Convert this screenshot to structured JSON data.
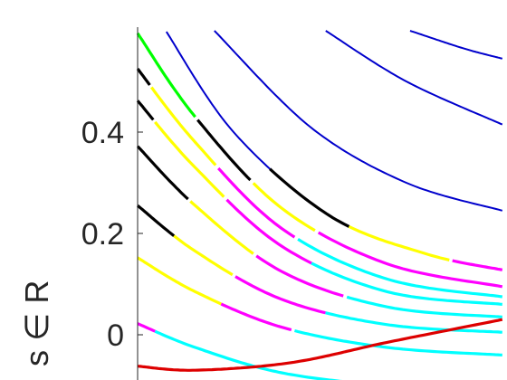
{
  "chart_data": {
    "type": "line",
    "title": "",
    "xlabel": "",
    "ylabel": "s ∈ R",
    "ylim": [
      -0.066,
      0.59
    ],
    "yticks": [
      0,
      0.2,
      0.4
    ],
    "ytick_labels": [
      "0",
      "0.2",
      "0.4"
    ],
    "grid": false,
    "legend": "none",
    "colors": {
      "green": "#00ff00",
      "black": "#000000",
      "yellow": "#ffff00",
      "magenta": "#ff00ff",
      "cyan": "#00ffff",
      "blue": "#0000cc",
      "red": "#dd0000",
      "axis": "#262626"
    },
    "curves": [
      {
        "points": [
          [
            0.0,
            0.595
          ],
          [
            0.3,
            0.43
          ],
          [
            0.75,
            0.25
          ],
          [
            1.3,
            0.14
          ],
          [
            1.9,
            0.095
          ]
        ],
        "segments": [
          [
            "green",
            0,
            0.22
          ],
          [
            "black",
            0.22,
            0.4
          ],
          [
            "yellow",
            0.4,
            0.58
          ],
          [
            "magenta",
            0.58,
            1
          ]
        ]
      },
      {
        "points": [
          [
            0.0,
            0.525
          ],
          [
            0.3,
            0.38
          ],
          [
            0.75,
            0.21
          ],
          [
            1.3,
            0.11
          ],
          [
            1.9,
            0.075
          ]
        ],
        "segments": [
          [
            "black",
            0,
            0.05
          ],
          [
            "yellow",
            0.05,
            0.28
          ],
          [
            "magenta",
            0.28,
            0.52
          ],
          [
            "cyan",
            0.52,
            1
          ]
        ]
      },
      {
        "points": [
          [
            0.0,
            0.462
          ],
          [
            0.3,
            0.33
          ],
          [
            0.75,
            0.175
          ],
          [
            1.3,
            0.085
          ],
          [
            1.9,
            0.06
          ]
        ],
        "segments": [
          [
            "black",
            0,
            0.06
          ],
          [
            "yellow",
            0.06,
            0.3
          ],
          [
            "magenta",
            0.3,
            0.55
          ],
          [
            "cyan",
            0.55,
            1
          ]
        ]
      },
      {
        "points": [
          [
            0.0,
            0.372
          ],
          [
            0.3,
            0.255
          ],
          [
            0.75,
            0.125
          ],
          [
            1.3,
            0.055
          ],
          [
            1.9,
            0.035
          ]
        ],
        "segments": [
          [
            "black",
            0,
            0.18
          ],
          [
            "yellow",
            0.18,
            0.38
          ],
          [
            "magenta",
            0.38,
            0.62
          ],
          [
            "cyan",
            0.62,
            1
          ]
        ]
      },
      {
        "points": [
          [
            0.0,
            0.255
          ],
          [
            0.3,
            0.165
          ],
          [
            0.75,
            0.07
          ],
          [
            1.3,
            0.02
          ],
          [
            1.9,
            0.005
          ]
        ],
        "segments": [
          [
            "black",
            0,
            0.12
          ],
          [
            "yellow",
            0.12,
            0.3
          ],
          [
            "magenta",
            0.3,
            0.55
          ],
          [
            "cyan",
            0.55,
            1
          ]
        ]
      },
      {
        "points": [
          [
            0.0,
            0.152
          ],
          [
            0.3,
            0.085
          ],
          [
            0.75,
            0.015
          ],
          [
            1.3,
            -0.025
          ],
          [
            1.9,
            -0.04
          ]
        ],
        "segments": [
          [
            "yellow",
            0,
            0.25
          ],
          [
            "magenta",
            0.25,
            0.45
          ],
          [
            "cyan",
            0.45,
            1
          ]
        ]
      },
      {
        "points": [
          [
            0.0,
            0.022
          ],
          [
            0.3,
            -0.025
          ],
          [
            0.75,
            -0.075
          ],
          [
            1.3,
            -0.1
          ],
          [
            1.9,
            -0.11
          ]
        ],
        "segments": [
          [
            "magenta",
            0,
            0.05
          ],
          [
            "cyan",
            0.05,
            1
          ]
        ]
      },
      {
        "points": [
          [
            0.15,
            0.598
          ],
          [
            0.5,
            0.4
          ],
          [
            1.0,
            0.235
          ],
          [
            1.5,
            0.16
          ],
          [
            1.9,
            0.128
          ]
        ],
        "segments": [
          [
            "blue",
            0,
            0.4
          ],
          [
            "black",
            0.4,
            0.63
          ],
          [
            "yellow",
            0.63,
            0.88
          ],
          [
            "magenta",
            0.88,
            1
          ]
        ]
      },
      {
        "points": [
          [
            0.4,
            0.6
          ],
          [
            0.9,
            0.41
          ],
          [
            1.4,
            0.3
          ],
          [
            1.9,
            0.245
          ]
        ],
        "segments": [
          [
            "blue",
            0,
            1
          ]
        ]
      },
      {
        "points": [
          [
            0.98,
            0.6
          ],
          [
            1.4,
            0.5
          ],
          [
            1.9,
            0.415
          ]
        ],
        "segments": [
          [
            "blue",
            0,
            1
          ]
        ]
      },
      {
        "points": [
          [
            1.42,
            0.6
          ],
          [
            1.7,
            0.565
          ],
          [
            1.9,
            0.545
          ]
        ],
        "segments": [
          [
            "blue",
            0,
            1
          ]
        ]
      },
      {
        "points": [
          [
            0.0,
            -0.062
          ],
          [
            0.3,
            -0.07
          ],
          [
            0.8,
            -0.055
          ],
          [
            1.3,
            -0.015
          ],
          [
            1.9,
            0.03
          ]
        ],
        "segments": [
          [
            "red",
            0,
            1
          ]
        ]
      }
    ]
  }
}
